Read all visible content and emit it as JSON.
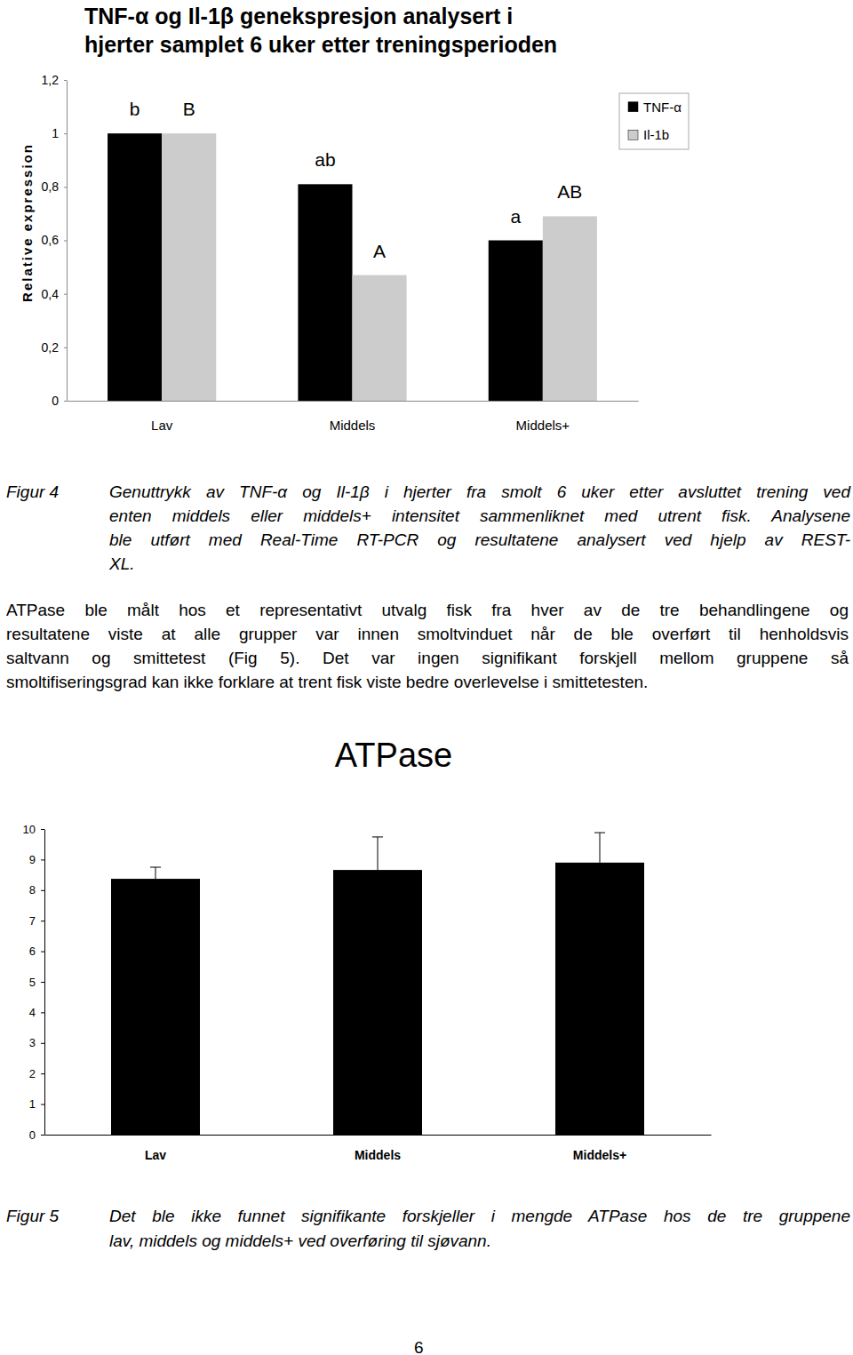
{
  "chart_data": [
    {
      "type": "bar",
      "title": [
        "TNF-α og Il-1β genekspresjon analysert i",
        "hjerter samplet 6 uker etter treningsperioden"
      ],
      "y_label": "Relative expression",
      "categories": [
        "Lav",
        "Middels",
        "Middels+"
      ],
      "series": [
        {
          "name": "TNF-α",
          "color": "#000000",
          "values": [
            1,
            0.81,
            0.6
          ],
          "annotations": [
            "b",
            "ab",
            "a"
          ]
        },
        {
          "name": "Il-1b",
          "color": "#cccccc",
          "values": [
            1,
            0.47,
            0.69
          ],
          "annotations": [
            "B",
            "A",
            "AB"
          ]
        }
      ],
      "ylim": [
        0,
        1.2
      ],
      "yticks": [
        0,
        {
          "value": 0.2,
          "label": "0,2"
        },
        {
          "value": 0.4,
          "label": "0,4"
        },
        {
          "value": 0.6,
          "label": "0,6"
        },
        {
          "value": 0.8,
          "label": "0,8"
        },
        1,
        {
          "value": 1.2,
          "label": "1,2"
        }
      ],
      "legend": "top-right",
      "grid": false
    },
    {
      "type": "bar",
      "title": "ATPase",
      "categories": [
        "Lav",
        "Middels",
        "Middels+"
      ],
      "values": [
        8.37,
        8.66,
        8.9
      ],
      "errors": [
        0.38,
        1.08,
        0.98
      ],
      "color": "#000000",
      "ylim": [
        0,
        10
      ],
      "yticks": [
        0,
        1,
        2,
        3,
        4,
        5,
        6,
        7,
        8,
        9,
        10
      ],
      "grid": false
    }
  ],
  "captions": [
    {
      "label": "Figur 4",
      "lines": [
        "Genuttrykk av TNF-α og Il-1β i hjerter fra smolt 6 uker etter avsluttet trening ved",
        "enten middels eller middels+ intensitet sammenliknet med utrent fisk. Analysene",
        "ble utført med Real-Time RT-PCR og resultatene analysert ved hjelp av REST-",
        "XL."
      ]
    },
    {
      "label": "Figur 5",
      "lines": [
        "Det ble ikke funnet signifikante forskjeller i mengde ATPase hos de tre gruppene",
        "lav, middels og middels+ ved overføring til sjøvann."
      ]
    }
  ],
  "paragraph": [
    "ATPase ble målt hos et representativt utvalg fisk fra hver av de tre behandlingene og",
    "resultatene viste at alle grupper var innen smoltvinduet når de ble overført til henholdsvis",
    "saltvann og smittetest (Fig 5). Det var ingen signifikant forskjell mellom gruppene så",
    "smoltifiseringsgrad kan ikke forklare at trent fisk viste bedre overlevelse i smittetesten."
  ],
  "page_number": 6
}
